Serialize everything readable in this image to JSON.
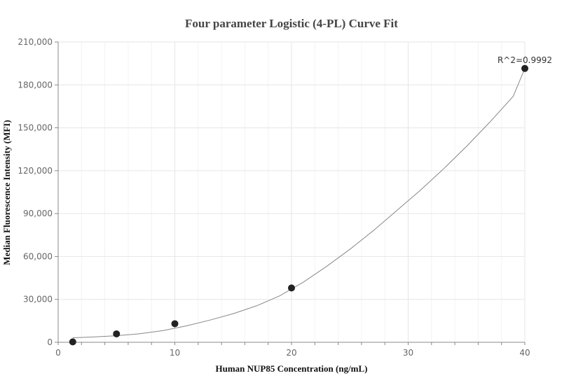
{
  "chart_data": {
    "type": "scatter",
    "title": "Four parameter Logistic (4-PL) Curve Fit",
    "xlabel": "Human NUP85 Concentration (ng/mL)",
    "ylabel": "Median Fluorescence Intensity (MFI)",
    "xlim": [
      0,
      40
    ],
    "ylim": [
      0,
      210000
    ],
    "xticks": [
      0,
      10,
      20,
      30,
      40
    ],
    "yticks": [
      0,
      30000,
      60000,
      90000,
      120000,
      150000,
      180000,
      210000
    ],
    "ytick_labels": [
      "0",
      "30,000",
      "60,000",
      "90,000",
      "120,000",
      "150,000",
      "180,000",
      "210,000"
    ],
    "points": [
      {
        "x": 1.25,
        "y": 300
      },
      {
        "x": 5,
        "y": 5900
      },
      {
        "x": 10,
        "y": 13000
      },
      {
        "x": 20,
        "y": 38000
      },
      {
        "x": 40,
        "y": 191500
      }
    ],
    "fit_curve": [
      {
        "x": 1.25,
        "y": 3200
      },
      {
        "x": 3,
        "y": 3700
      },
      {
        "x": 5,
        "y": 4600
      },
      {
        "x": 7,
        "y": 6000
      },
      {
        "x": 9,
        "y": 8200
      },
      {
        "x": 11,
        "y": 11500
      },
      {
        "x": 13,
        "y": 15500
      },
      {
        "x": 15,
        "y": 20000
      },
      {
        "x": 17,
        "y": 25500
      },
      {
        "x": 19,
        "y": 32500
      },
      {
        "x": 21,
        "y": 42000
      },
      {
        "x": 23,
        "y": 53000
      },
      {
        "x": 25,
        "y": 65000
      },
      {
        "x": 27,
        "y": 78000
      },
      {
        "x": 29,
        "y": 92000
      },
      {
        "x": 31,
        "y": 106000
      },
      {
        "x": 33,
        "y": 121000
      },
      {
        "x": 35,
        "y": 137000
      },
      {
        "x": 37,
        "y": 154000
      },
      {
        "x": 39,
        "y": 172000
      },
      {
        "x": 40,
        "y": 191500
      }
    ],
    "annotation": "R^2=0.9992",
    "grid": true,
    "colors": {
      "point": "#222222",
      "curve": "#888888",
      "grid": "#e6e6e6",
      "axis": "#888888"
    }
  }
}
